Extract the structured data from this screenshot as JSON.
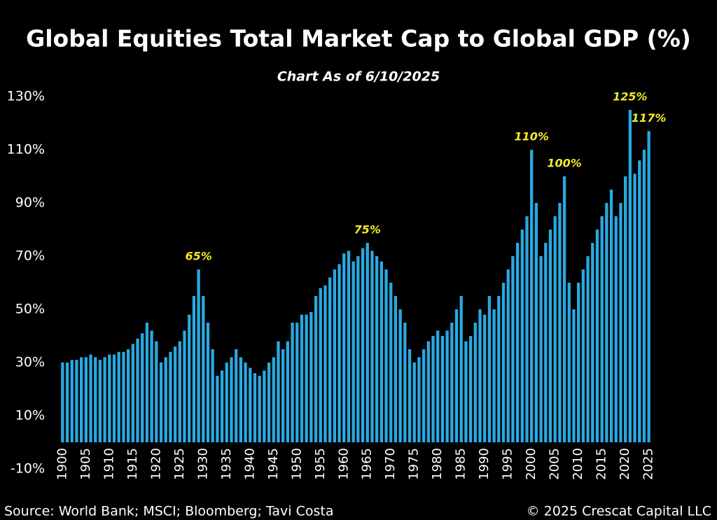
{
  "chart_data": {
    "type": "bar",
    "title": "Global Equities Total Market Cap to Global GDP (%)",
    "subtitle": "Chart As of 6/10/2025",
    "source": "Source: World Bank; MSCI; Bloomberg; Tavi Costa",
    "copyright": "© 2025 Crescat Capital LLC",
    "color": "#29a9e1",
    "label_color": "#f2ea2a",
    "categories": [
      "1900",
      null,
      null,
      null,
      null,
      "1905",
      null,
      null,
      null,
      null,
      "1910",
      null,
      null,
      null,
      null,
      "1915",
      null,
      null,
      null,
      null,
      "1920",
      null,
      null,
      null,
      null,
      "1925",
      null,
      null,
      null,
      null,
      "1930",
      null,
      null,
      null,
      null,
      "1935",
      null,
      null,
      null,
      null,
      "1940",
      null,
      null,
      null,
      null,
      "1945",
      null,
      null,
      null,
      null,
      "1950",
      null,
      null,
      null,
      null,
      "1955",
      null,
      null,
      null,
      null,
      "1960",
      null,
      null,
      null,
      null,
      "1965",
      null,
      null,
      null,
      null,
      "1970",
      null,
      null,
      null,
      null,
      "1975",
      null,
      null,
      null,
      null,
      "1980",
      null,
      null,
      null,
      null,
      "1985",
      null,
      null,
      null,
      null,
      "1990",
      null,
      null,
      null,
      null,
      "1995",
      null,
      null,
      null,
      null,
      "2000",
      null,
      null,
      null,
      null,
      "2005",
      null,
      null,
      null,
      null,
      "2010",
      null,
      null,
      null,
      null,
      "2015",
      null,
      null,
      null,
      null,
      "2020",
      null,
      null,
      null,
      null,
      "2025"
    ],
    "values": [
      30,
      30,
      31,
      31,
      32,
      32,
      33,
      32,
      31,
      32,
      33,
      33,
      34,
      34,
      35,
      37,
      39,
      41,
      45,
      42,
      38,
      30,
      32,
      34,
      36,
      38,
      42,
      48,
      55,
      65,
      55,
      45,
      35,
      25,
      27,
      30,
      32,
      35,
      32,
      30,
      28,
      26,
      25,
      27,
      30,
      32,
      38,
      35,
      38,
      45,
      45,
      48,
      48,
      49,
      55,
      58,
      59,
      62,
      65,
      67,
      71,
      72,
      68,
      70,
      73,
      75,
      72,
      70,
      68,
      65,
      60,
      55,
      50,
      45,
      35,
      30,
      32,
      35,
      38,
      40,
      42,
      40,
      42,
      45,
      50,
      55,
      38,
      40,
      45,
      50,
      48,
      55,
      50,
      55,
      60,
      65,
      70,
      75,
      80,
      85,
      110,
      90,
      70,
      75,
      80,
      85,
      90,
      100,
      60,
      50,
      60,
      65,
      70,
      75,
      80,
      85,
      90,
      95,
      85,
      90,
      100,
      125,
      101,
      106,
      110,
      117
    ],
    "value_labels": [
      null,
      null,
      null,
      null,
      null,
      null,
      null,
      null,
      null,
      null,
      null,
      null,
      null,
      null,
      null,
      null,
      null,
      null,
      null,
      null,
      null,
      null,
      null,
      null,
      null,
      null,
      null,
      null,
      null,
      "65%",
      null,
      null,
      null,
      null,
      null,
      null,
      null,
      null,
      null,
      null,
      null,
      null,
      null,
      null,
      null,
      null,
      null,
      null,
      null,
      null,
      null,
      null,
      null,
      null,
      null,
      null,
      null,
      null,
      null,
      null,
      null,
      null,
      null,
      null,
      null,
      "75%",
      null,
      null,
      null,
      null,
      null,
      null,
      null,
      null,
      null,
      null,
      null,
      null,
      null,
      null,
      null,
      null,
      null,
      null,
      null,
      null,
      null,
      null,
      null,
      null,
      null,
      null,
      null,
      null,
      null,
      null,
      null,
      null,
      null,
      null,
      "110%",
      null,
      null,
      null,
      null,
      null,
      null,
      "100%",
      null,
      null,
      null,
      null,
      null,
      null,
      null,
      null,
      null,
      null,
      null,
      null,
      null,
      "125%",
      null,
      null,
      null,
      "117%"
    ],
    "ylim": [
      -10,
      135
    ],
    "yticks": [
      {
        "value": -10,
        "label": "-10%"
      },
      {
        "value": 10,
        "label": "10%"
      },
      {
        "value": 30,
        "label": "30%"
      },
      {
        "value": 50,
        "label": "50%"
      },
      {
        "value": 70,
        "label": "70%"
      },
      {
        "value": 90,
        "label": "90%"
      },
      {
        "value": 110,
        "label": "110%"
      },
      {
        "value": 130,
        "label": "130%"
      }
    ],
    "grid": false
  }
}
